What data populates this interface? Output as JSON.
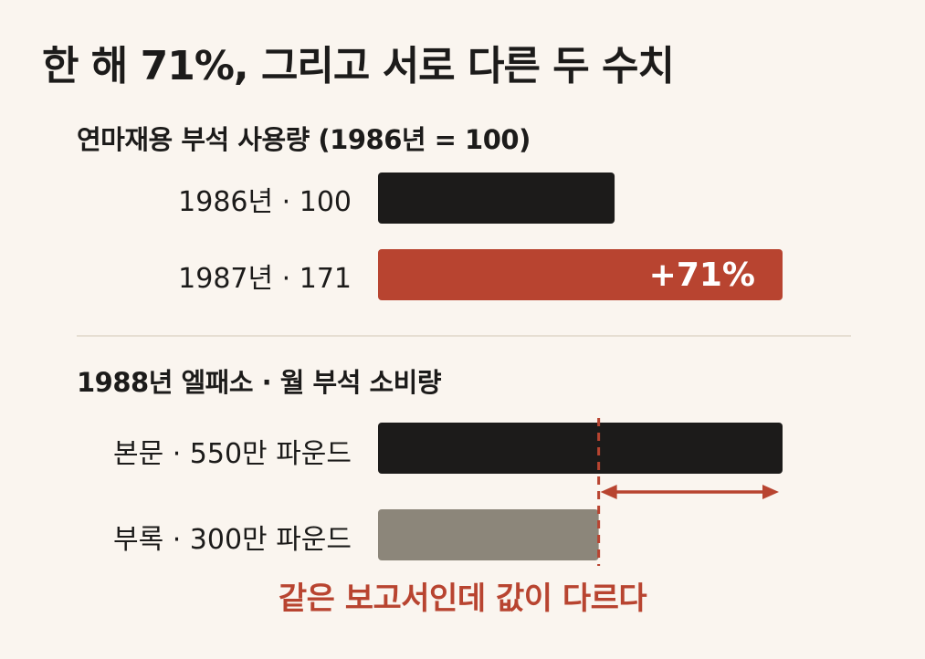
{
  "title": "한 해 71%, 그리고 서로 다른 두 수치",
  "colors": {
    "background": "#faf5ef",
    "dark_bar": "#1c1b1a",
    "accent": "#b84430",
    "gray_bar": "#8c867a",
    "divider": "#e6ded2"
  },
  "chart_data": [
    {
      "type": "bar",
      "orientation": "horizontal",
      "title": "연마재용 부석 사용량 (1986년 = 100)",
      "categories": [
        "1986년",
        "1987년"
      ],
      "labels": [
        "1986년 · 100",
        "1987년 · 171"
      ],
      "values": [
        100,
        171
      ],
      "annotation": "+71%",
      "xlim": [
        0,
        171
      ]
    },
    {
      "type": "bar",
      "orientation": "horizontal",
      "title": "1988년 엘패소 · 월 부석 소비량",
      "categories": [
        "본문",
        "부록"
      ],
      "labels": [
        "본문 · 550만 파운드",
        "부록 · 300만 파운드"
      ],
      "values": [
        550,
        300
      ],
      "unit": "만 파운드",
      "xlim": [
        0,
        550
      ],
      "annotation": "같은 보고서인데 값이 다르다"
    }
  ]
}
